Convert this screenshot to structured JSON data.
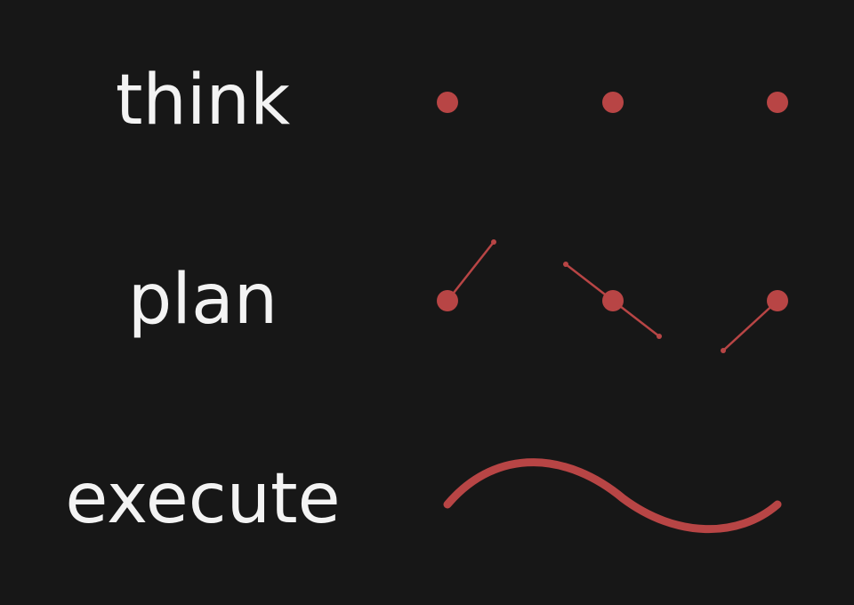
{
  "labels": {
    "think": "think",
    "plan": "plan",
    "execute": "execute"
  },
  "colors": {
    "background": "#171717",
    "text": "#f3f3f3",
    "accent": "#b84545"
  }
}
